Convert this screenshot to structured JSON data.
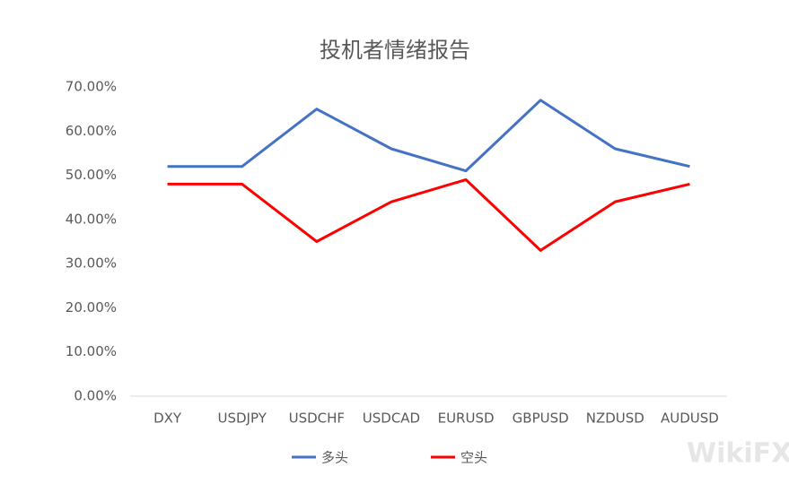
{
  "chart_data": {
    "type": "line",
    "title": "投机者情绪报告",
    "categories": [
      "DXY",
      "USDJPY",
      "USDCHF",
      "USDCAD",
      "EURUSD",
      "GBPUSD",
      "NZDUSD",
      "AUDUSD"
    ],
    "series": [
      {
        "name": "多头",
        "color": "#4472c4",
        "values": [
          52,
          52,
          65,
          56,
          51,
          67,
          56,
          52
        ]
      },
      {
        "name": "空头",
        "color": "#ff0000",
        "values": [
          48,
          48,
          35,
          44,
          49,
          33,
          44,
          48
        ]
      }
    ],
    "ylim": [
      0,
      70
    ],
    "yticks": [
      {
        "value": 0,
        "label": "0.00%"
      },
      {
        "value": 10,
        "label": "10.00%"
      },
      {
        "value": 20,
        "label": "20.00%"
      },
      {
        "value": 30,
        "label": "30.00%"
      },
      {
        "value": 40,
        "label": "40.00%"
      },
      {
        "value": 50,
        "label": "50.00%"
      },
      {
        "value": 60,
        "label": "60.00%"
      },
      {
        "value": 70,
        "label": "70.00%"
      }
    ],
    "grid": false,
    "legend": "bottom",
    "watermark": "WikiFX"
  }
}
